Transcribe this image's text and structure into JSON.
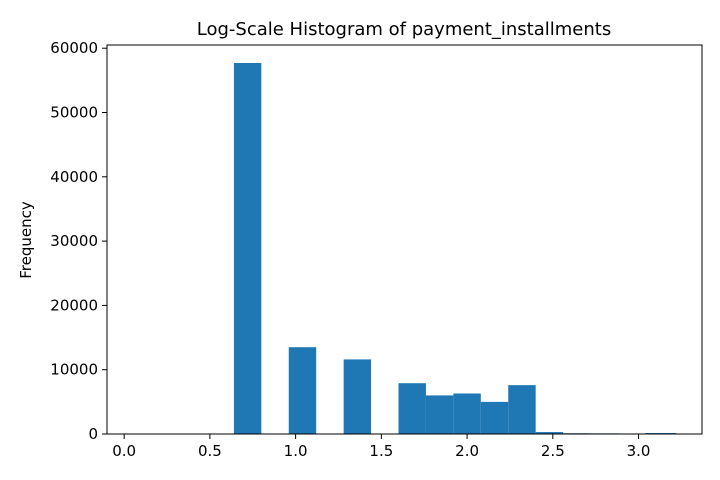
{
  "chart_data": {
    "type": "bar",
    "title": "Log-Scale Histogram of payment_installments",
    "xlabel": "",
    "ylabel": "Frequency",
    "xlim": [
      -0.1,
      3.37
    ],
    "ylim": [
      0,
      60500
    ],
    "x_ticks": [
      "0.0",
      "0.5",
      "1.0",
      "1.5",
      "2.0",
      "2.5",
      "3.0"
    ],
    "y_ticks": [
      "0",
      "10000",
      "20000",
      "30000",
      "40000",
      "50000",
      "60000"
    ],
    "grid": false,
    "legend": "none",
    "bar_color": "#1f77b4",
    "bins": [
      {
        "start": 0.0,
        "end": 0.16,
        "value": 0
      },
      {
        "start": 0.16,
        "end": 0.32,
        "value": 0
      },
      {
        "start": 0.32,
        "end": 0.48,
        "value": 0
      },
      {
        "start": 0.48,
        "end": 0.64,
        "value": 0
      },
      {
        "start": 0.64,
        "end": 0.8,
        "value": 57700
      },
      {
        "start": 0.8,
        "end": 0.96,
        "value": 0
      },
      {
        "start": 0.96,
        "end": 1.12,
        "value": 13500
      },
      {
        "start": 1.12,
        "end": 1.28,
        "value": 0
      },
      {
        "start": 1.28,
        "end": 1.44,
        "value": 11600
      },
      {
        "start": 1.44,
        "end": 1.6,
        "value": 0
      },
      {
        "start": 1.6,
        "end": 1.76,
        "value": 7900
      },
      {
        "start": 1.76,
        "end": 1.92,
        "value": 6000
      },
      {
        "start": 1.92,
        "end": 2.08,
        "value": 6300
      },
      {
        "start": 2.08,
        "end": 2.24,
        "value": 5000
      },
      {
        "start": 2.24,
        "end": 2.4,
        "value": 7600
      },
      {
        "start": 2.4,
        "end": 2.56,
        "value": 300
      },
      {
        "start": 2.56,
        "end": 2.72,
        "value": 120
      },
      {
        "start": 2.72,
        "end": 2.88,
        "value": 100
      },
      {
        "start": 2.88,
        "end": 3.04,
        "value": 80
      },
      {
        "start": 3.04,
        "end": 3.22,
        "value": 150
      }
    ]
  }
}
